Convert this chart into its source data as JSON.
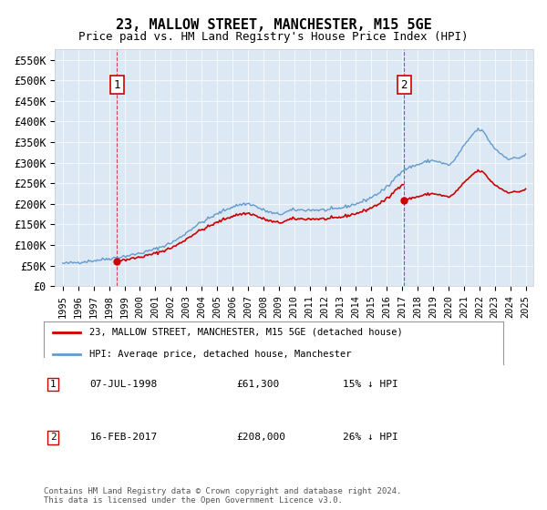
{
  "title": "23, MALLOW STREET, MANCHESTER, M15 5GE",
  "subtitle": "Price paid vs. HM Land Registry's House Price Index (HPI)",
  "legend_line1": "23, MALLOW STREET, MANCHESTER, M15 5GE (detached house)",
  "legend_line2": "HPI: Average price, detached house, Manchester",
  "annotation1_label": "1",
  "annotation1_date": "07-JUL-1998",
  "annotation1_price": "£61,300",
  "annotation1_hpi": "15% ↓ HPI",
  "annotation2_label": "2",
  "annotation2_date": "16-FEB-2017",
  "annotation2_price": "£208,000",
  "annotation2_hpi": "26% ↓ HPI",
  "footer": "Contains HM Land Registry data © Crown copyright and database right 2024.\nThis data is licensed under the Open Government Licence v3.0.",
  "hpi_color": "#6699cc",
  "sale_color": "#cc0000",
  "sale1_x": 1998.52,
  "sale1_y": 61300,
  "sale2_x": 2017.12,
  "sale2_y": 208000,
  "ylim": [
    0,
    575000
  ],
  "xlim": [
    1994.5,
    2025.5
  ],
  "yticks": [
    0,
    50000,
    100000,
    150000,
    200000,
    250000,
    300000,
    350000,
    400000,
    450000,
    500000,
    550000
  ],
  "ytick_labels": [
    "£0",
    "£50K",
    "£100K",
    "£150K",
    "£200K",
    "£250K",
    "£300K",
    "£350K",
    "£400K",
    "£450K",
    "£500K",
    "£550K"
  ],
  "xticks": [
    1995,
    1996,
    1997,
    1998,
    1999,
    2000,
    2001,
    2002,
    2003,
    2004,
    2005,
    2006,
    2007,
    2008,
    2009,
    2010,
    2011,
    2012,
    2013,
    2014,
    2015,
    2016,
    2017,
    2018,
    2019,
    2020,
    2021,
    2022,
    2023,
    2024,
    2025
  ],
  "background_color": "#dce9f5",
  "plot_bg": "#dce9f5"
}
